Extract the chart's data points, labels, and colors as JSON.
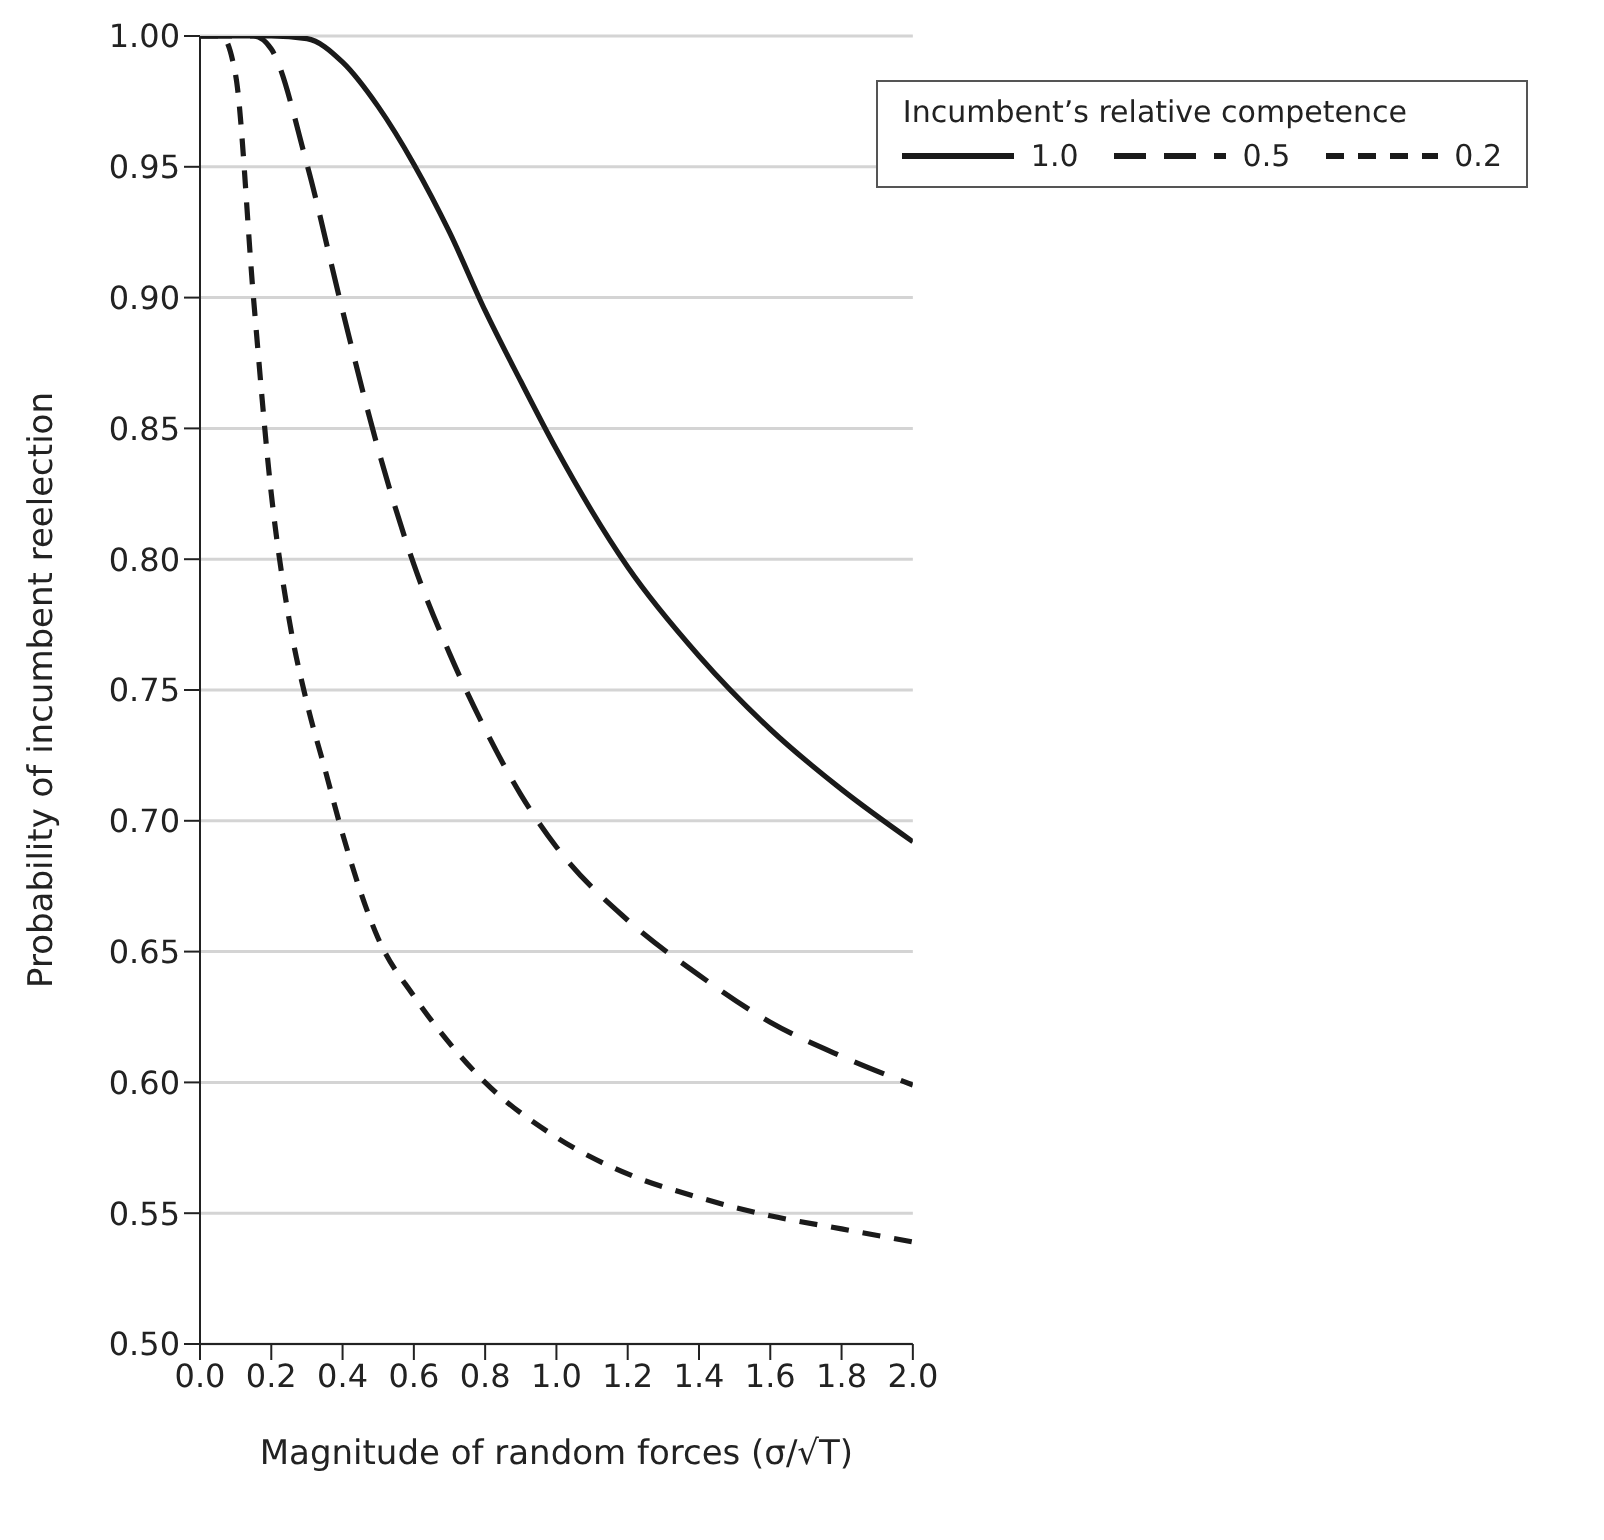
{
  "chart_data": {
    "type": "line",
    "xlabel": "Magnitude of random forces (σ/√T)",
    "ylabel": "Probability of incumbent reelection",
    "legend_title": "Incumbent’s relative competence",
    "legend": "top right",
    "grid": "y",
    "marker": "none",
    "xlim": [
      0,
      2
    ],
    "ylim": [
      0.5,
      1
    ],
    "xticks": [
      {
        "value": 0,
        "label": "0.0"
      },
      {
        "value": 0.2,
        "label": "0.2"
      },
      {
        "value": 0.4,
        "label": "0.4"
      },
      {
        "value": 0.6,
        "label": "0.6"
      },
      {
        "value": 0.8,
        "label": "0.8"
      },
      {
        "value": 1,
        "label": "1.0"
      },
      {
        "value": 1.2,
        "label": "1.2"
      },
      {
        "value": 1.4,
        "label": "1.4"
      },
      {
        "value": 1.6,
        "label": "1.6"
      },
      {
        "value": 1.8,
        "label": "1.8"
      },
      {
        "value": 2,
        "label": "2.0"
      }
    ],
    "yticks": [
      {
        "value": 0.5,
        "label": "0.50"
      },
      {
        "value": 0.55,
        "label": "0.55"
      },
      {
        "value": 0.6,
        "label": "0.60"
      },
      {
        "value": 0.65,
        "label": "0.65"
      },
      {
        "value": 0.7,
        "label": "0.70"
      },
      {
        "value": 0.75,
        "label": "0.75"
      },
      {
        "value": 0.8,
        "label": "0.80"
      },
      {
        "value": 0.85,
        "label": "0.85"
      },
      {
        "value": 0.9,
        "label": "0.90"
      },
      {
        "value": 0.95,
        "label": "0.95"
      },
      {
        "value": 1,
        "label": "1.00"
      }
    ],
    "series": [
      {
        "name": "1.0",
        "color": "#1a1a1a",
        "line_style": "solid",
        "x": [
          0,
          0.2,
          0.3,
          0.4,
          0.5,
          0.6,
          0.7,
          0.8,
          0.9,
          1.0,
          1.2,
          1.4,
          1.6,
          1.8,
          2.0
        ],
        "values": [
          1,
          1,
          0.999,
          0.99,
          0.973,
          0.951,
          0.925,
          0.895,
          0.868,
          0.842,
          0.797,
          0.763,
          0.735,
          0.712,
          0.692
        ]
      },
      {
        "name": "0.5",
        "color": "#1a1a1a",
        "line_style": "dashed",
        "x": [
          0,
          0.15,
          0.2,
          0.3,
          0.4,
          0.5,
          0.6,
          0.7,
          0.8,
          0.9,
          1.0,
          1.2,
          1.4,
          1.6,
          1.8,
          2.0
        ],
        "values": [
          1,
          1,
          0.995,
          0.951,
          0.895,
          0.842,
          0.798,
          0.764,
          0.735,
          0.71,
          0.69,
          0.662,
          0.641,
          0.623,
          0.61,
          0.599
        ]
      },
      {
        "name": "0.2",
        "color": "#1a1a1a",
        "line_style": "dotted",
        "x": [
          0,
          0.06,
          0.1,
          0.15,
          0.2,
          0.25,
          0.3,
          0.35,
          0.4,
          0.5,
          0.6,
          0.7,
          0.8,
          1.0,
          1.2,
          1.4,
          1.6,
          1.8,
          2.0
        ],
        "values": [
          1,
          1,
          0.985,
          0.9,
          0.825,
          0.777,
          0.745,
          0.72,
          0.695,
          0.655,
          0.633,
          0.615,
          0.6,
          0.579,
          0.565,
          0.556,
          0.549,
          0.544,
          0.539
        ]
      }
    ]
  }
}
